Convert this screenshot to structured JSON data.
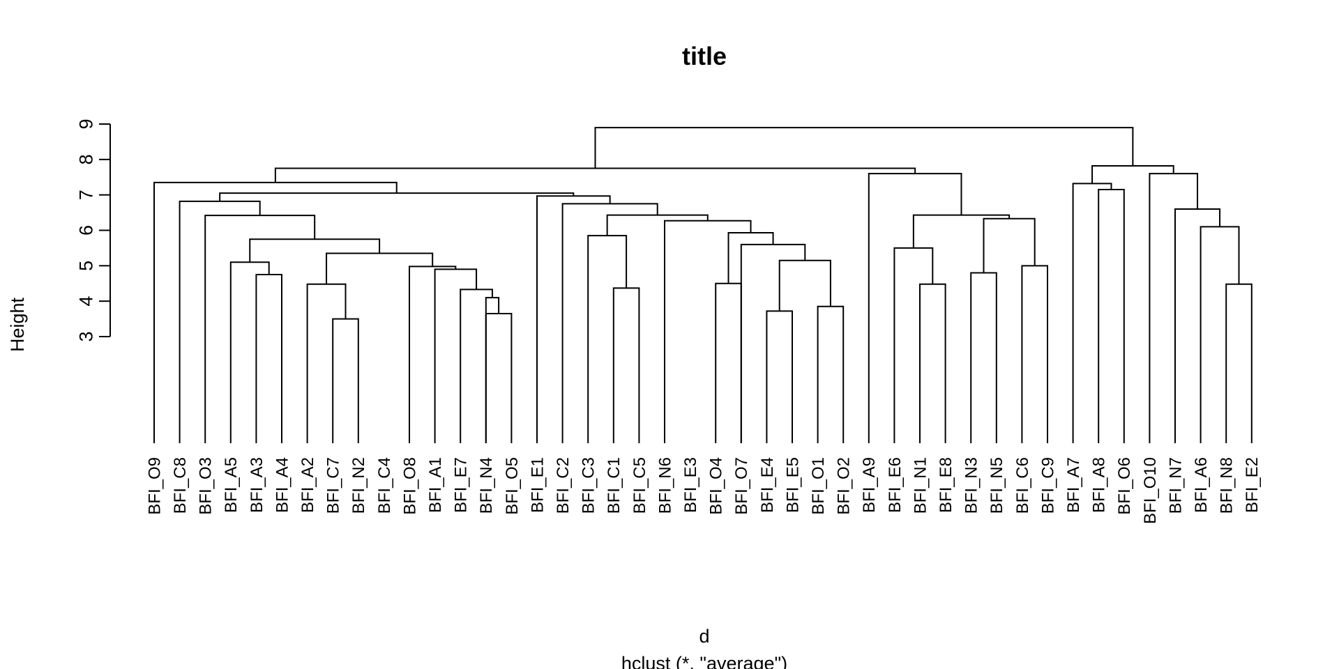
{
  "chart_data": {
    "type": "dendrogram",
    "title": "title",
    "xlabel": "d",
    "ylabel": "Height",
    "subtitle": "hclust (*, \"average\")",
    "yticks": [
      3,
      4,
      5,
      6,
      7,
      8,
      9
    ],
    "ylim": [
      0,
      9.6
    ],
    "labels": [
      "BFI_O9",
      "BFI_C8",
      "BFI_O3",
      "BFI_A5",
      "BFI_A3",
      "BFI_A4",
      "BFI_A2",
      "BFI_C7",
      "BFI_N2",
      "BFI_C4",
      "BFI_O8",
      "BFI_A1",
      "BFI_E7",
      "BFI_N4",
      "BFI_O5",
      "BFI_E1",
      "BFI_C2",
      "BFI_C3",
      "BFI_C1",
      "BFI_C5",
      "BFI_N6",
      "BFI_E3",
      "BFI_O4",
      "BFI_O7",
      "BFI_E4",
      "BFI_E5",
      "BFI_O1",
      "BFI_O2",
      "BFI_A9",
      "BFI_E6",
      "BFI_N1",
      "BFI_E8",
      "BFI_N3",
      "BFI_N5",
      "BFI_C6",
      "BFI_C9",
      "BFI_A7",
      "BFI_A8",
      "BFI_O6",
      "BFI_O10",
      "BFI_N7",
      "BFI_A6",
      "BFI_N8",
      "BFI_E2"
    ],
    "merges": [
      {
        "a": 8,
        "b": 9,
        "h": 3.5
      },
      {
        "a": 14,
        "b": 15,
        "h": 3.65
      },
      {
        "a": 14,
        "b": -2,
        "h": 4.1
      },
      {
        "a": 13,
        "b": -3,
        "h": 4.33
      },
      {
        "a": 12,
        "b": -4,
        "h": 4.9
      },
      {
        "a": 11,
        "b": -5,
        "h": 4.98
      },
      {
        "a": 7,
        "b": -1,
        "h": 4.48
      },
      {
        "a": -7,
        "b": -6,
        "h": 5.35
      },
      {
        "a": 5,
        "b": 6,
        "h": 4.75
      },
      {
        "a": 4,
        "b": -9,
        "h": 5.1
      },
      {
        "a": -10,
        "b": -8,
        "h": 5.75
      },
      {
        "a": 3,
        "b": -11,
        "h": 6.42
      },
      {
        "a": 2,
        "b": -12,
        "h": 6.82
      },
      {
        "a": 19,
        "b": 20,
        "h": 4.37
      },
      {
        "a": 18,
        "b": -14,
        "h": 5.85
      },
      {
        "a": 25,
        "b": 26,
        "h": 3.72
      },
      {
        "a": 27,
        "b": 28,
        "h": 3.85
      },
      {
        "a": -16,
        "b": -17,
        "h": 5.15
      },
      {
        "a": 24,
        "b": -18,
        "h": 5.6
      },
      {
        "a": 23,
        "b": 24,
        "h": 4.5
      },
      {
        "a": -20,
        "b": -19,
        "h": 5.93
      },
      {
        "a": 21,
        "b": -21,
        "h": 6.27
      },
      {
        "a": -15,
        "b": -22,
        "h": 6.43
      },
      {
        "a": 17,
        "b": -23,
        "h": 6.75
      },
      {
        "a": 16,
        "b": -24,
        "h": 6.97
      },
      {
        "a": -13,
        "b": -25,
        "h": 7.05
      },
      {
        "a": 1,
        "b": -26,
        "h": 7.35
      },
      {
        "a": 31,
        "b": 32,
        "h": 4.48
      },
      {
        "a": 30,
        "b": -28,
        "h": 5.5
      },
      {
        "a": 33,
        "b": 34,
        "h": 4.8
      },
      {
        "a": 35,
        "b": 36,
        "h": 5.0
      },
      {
        "a": -30,
        "b": -31,
        "h": 6.33
      },
      {
        "a": -29,
        "b": -32,
        "h": 6.43
      },
      {
        "a": 29,
        "b": -33,
        "h": 7.6
      },
      {
        "a": 38,
        "b": 39,
        "h": 7.15
      },
      {
        "a": 37,
        "b": -35,
        "h": 7.32
      },
      {
        "a": 43,
        "b": 44,
        "h": 4.48
      },
      {
        "a": 42,
        "b": -37,
        "h": 6.1
      },
      {
        "a": 41,
        "b": -38,
        "h": 6.6
      },
      {
        "a": 40,
        "b": -39,
        "h": 7.6
      },
      {
        "a": -36,
        "b": -40,
        "h": 7.82
      },
      {
        "a": -27,
        "b": -34,
        "h": 7.75
      },
      {
        "a": -42,
        "b": -41,
        "h": 8.9
      }
    ]
  }
}
